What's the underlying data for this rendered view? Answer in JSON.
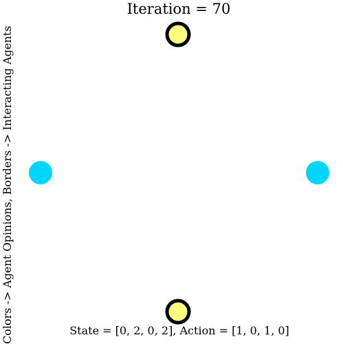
{
  "title": "Iteration = 70",
  "ylabel": "Colors -> Agent Opinions, Borders -> Interacting Agents",
  "caption": "State = [0, 2, 0, 2], Action = [1, 0, 1, 0]",
  "colors": {
    "yellow_opinion": "#ffff80",
    "cyan_opinion": "#00d4ff",
    "interacting_border": "#000000"
  },
  "agents": [
    {
      "name": "agent-top",
      "opinion": 2,
      "interacting": true
    },
    {
      "name": "agent-right",
      "opinion": 0,
      "interacting": false
    },
    {
      "name": "agent-bottom",
      "opinion": 2,
      "interacting": true
    },
    {
      "name": "agent-left",
      "opinion": 0,
      "interacting": false
    }
  ]
}
